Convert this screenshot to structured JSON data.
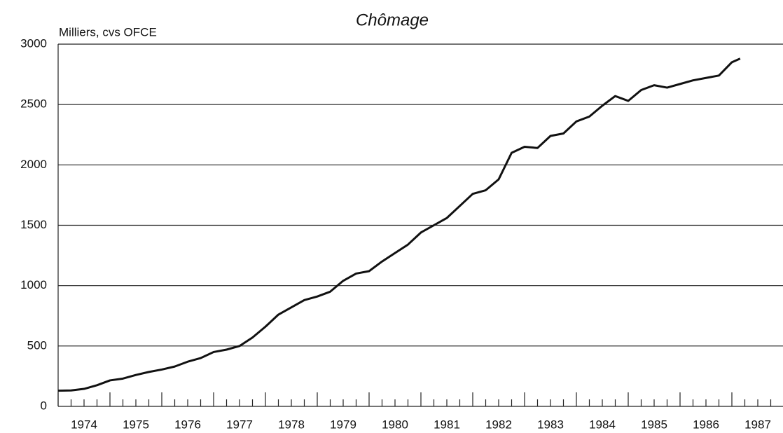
{
  "chart_data": {
    "type": "line",
    "title": "Chômage",
    "y_label": "Milliers, cvs OFCE",
    "x": [
      1974.0,
      1974.25,
      1974.5,
      1974.75,
      1975.0,
      1975.25,
      1975.5,
      1975.75,
      1976.0,
      1976.25,
      1976.5,
      1976.75,
      1977.0,
      1977.25,
      1977.5,
      1977.75,
      1978.0,
      1978.25,
      1978.5,
      1978.75,
      1979.0,
      1979.25,
      1979.5,
      1979.75,
      1980.0,
      1980.25,
      1980.5,
      1980.75,
      1981.0,
      1981.25,
      1981.5,
      1981.75,
      1982.0,
      1982.25,
      1982.5,
      1982.75,
      1983.0,
      1983.25,
      1983.5,
      1983.75,
      1984.0,
      1984.25,
      1984.5,
      1984.75,
      1985.0,
      1985.25,
      1985.5,
      1985.75,
      1986.0,
      1986.25,
      1986.5,
      1986.75,
      1987.0,
      1987.16
    ],
    "series": [
      {
        "name": "Chômage",
        "color": "#111111",
        "values": [
          130,
          132,
          145,
          175,
          215,
          230,
          260,
          285,
          305,
          330,
          370,
          400,
          450,
          470,
          500,
          570,
          660,
          760,
          820,
          880,
          910,
          950,
          1040,
          1100,
          1120,
          1200,
          1270,
          1340,
          1440,
          1500,
          1560,
          1660,
          1760,
          1790,
          1880,
          2100,
          2150,
          2140,
          2240,
          2260,
          2360,
          2400,
          2490,
          2570,
          2530,
          2620,
          2660,
          2640,
          2670,
          2700,
          2720,
          2740,
          2850,
          2880
        ]
      }
    ],
    "xlim": [
      1974,
      1988
    ],
    "ylim": [
      0,
      3000
    ],
    "yticks": [
      0,
      500,
      1000,
      1500,
      2000,
      2500,
      3000
    ],
    "xticks": [
      {
        "value": 1974.5,
        "label": "1974"
      },
      {
        "value": 1975.5,
        "label": "1975"
      },
      {
        "value": 1976.5,
        "label": "1976"
      },
      {
        "value": 1977.5,
        "label": "1977"
      },
      {
        "value": 1978.5,
        "label": "1978"
      },
      {
        "value": 1979.5,
        "label": "1979"
      },
      {
        "value": 1980.5,
        "label": "1980"
      },
      {
        "value": 1981.5,
        "label": "1981"
      },
      {
        "value": 1982.5,
        "label": "1982"
      },
      {
        "value": 1983.5,
        "label": "1983"
      },
      {
        "value": 1984.5,
        "label": "1984"
      },
      {
        "value": 1985.5,
        "label": "1985"
      },
      {
        "value": 1986.5,
        "label": "1986"
      },
      {
        "value": 1987.5,
        "label": "1987"
      }
    ],
    "grid": true
  }
}
